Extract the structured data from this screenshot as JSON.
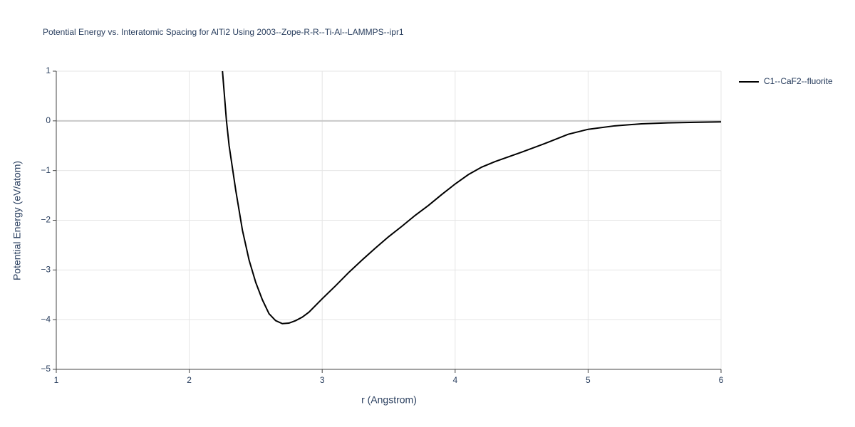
{
  "chart_data": {
    "type": "line",
    "title": "Potential Energy vs. Interatomic Spacing for AlTi2 Using 2003--Zope-R-R--Ti-Al--LAMMPS--ipr1",
    "x_label": "r (Angstrom)",
    "y_label": "Potential Energy (eV/atom)",
    "x": [
      2.25,
      2.28,
      2.3,
      2.35,
      2.4,
      2.45,
      2.5,
      2.55,
      2.6,
      2.65,
      2.7,
      2.75,
      2.8,
      2.85,
      2.9,
      3.0,
      3.1,
      3.2,
      3.3,
      3.4,
      3.5,
      3.6,
      3.7,
      3.8,
      3.9,
      4.0,
      4.1,
      4.2,
      4.3,
      4.5,
      4.7,
      4.85,
      5.0,
      5.2,
      5.4,
      5.6,
      5.8,
      6.0
    ],
    "series": [
      {
        "name": "C1--CaF2--fluorite",
        "color": "#000000",
        "values": [
          1.0,
          0.0,
          -0.5,
          -1.4,
          -2.2,
          -2.8,
          -3.25,
          -3.6,
          -3.88,
          -4.02,
          -4.08,
          -4.07,
          -4.02,
          -3.95,
          -3.85,
          -3.58,
          -3.32,
          -3.05,
          -2.8,
          -2.56,
          -2.33,
          -2.12,
          -1.9,
          -1.7,
          -1.48,
          -1.27,
          -1.08,
          -0.93,
          -0.82,
          -0.63,
          -0.43,
          -0.27,
          -0.17,
          -0.1,
          -0.06,
          -0.04,
          -0.03,
          -0.02
        ]
      }
    ],
    "xlim": [
      1,
      6
    ],
    "xticks": [
      1,
      2,
      3,
      4,
      5,
      6
    ],
    "ylim": [
      -5,
      1
    ],
    "yticks": [
      {
        "value": -5,
        "label": "−5"
      },
      {
        "value": -4,
        "label": "−4"
      },
      {
        "value": -3,
        "label": "−3"
      },
      {
        "value": -2,
        "label": "−2"
      },
      {
        "value": -1,
        "label": "−1"
      },
      0,
      1
    ],
    "grid": true,
    "legend": "right"
  }
}
